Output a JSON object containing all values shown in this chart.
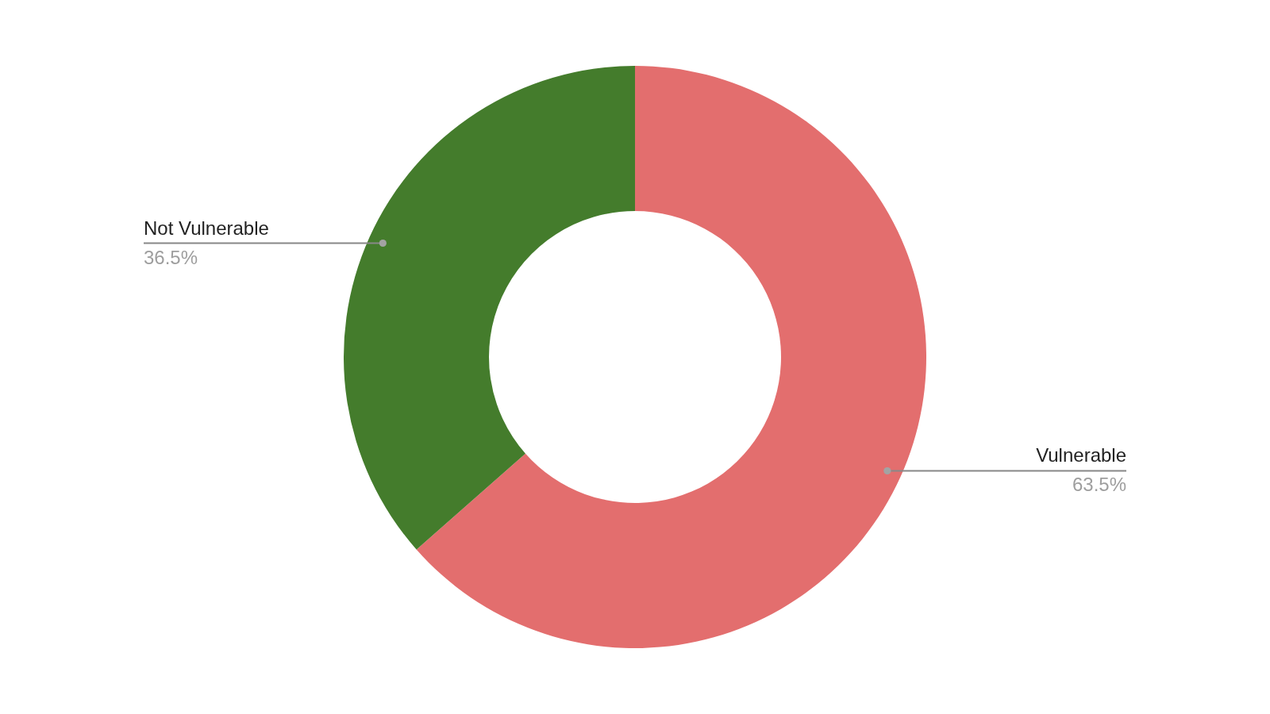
{
  "chart_data": {
    "type": "donut",
    "categories": [
      "Vulnerable",
      "Not Vulnerable"
    ],
    "values": [
      63.5,
      36.5
    ],
    "colors": [
      "#e36e6e",
      "#447c2c"
    ],
    "value_labels": [
      "63.5%",
      "36.5%"
    ]
  }
}
